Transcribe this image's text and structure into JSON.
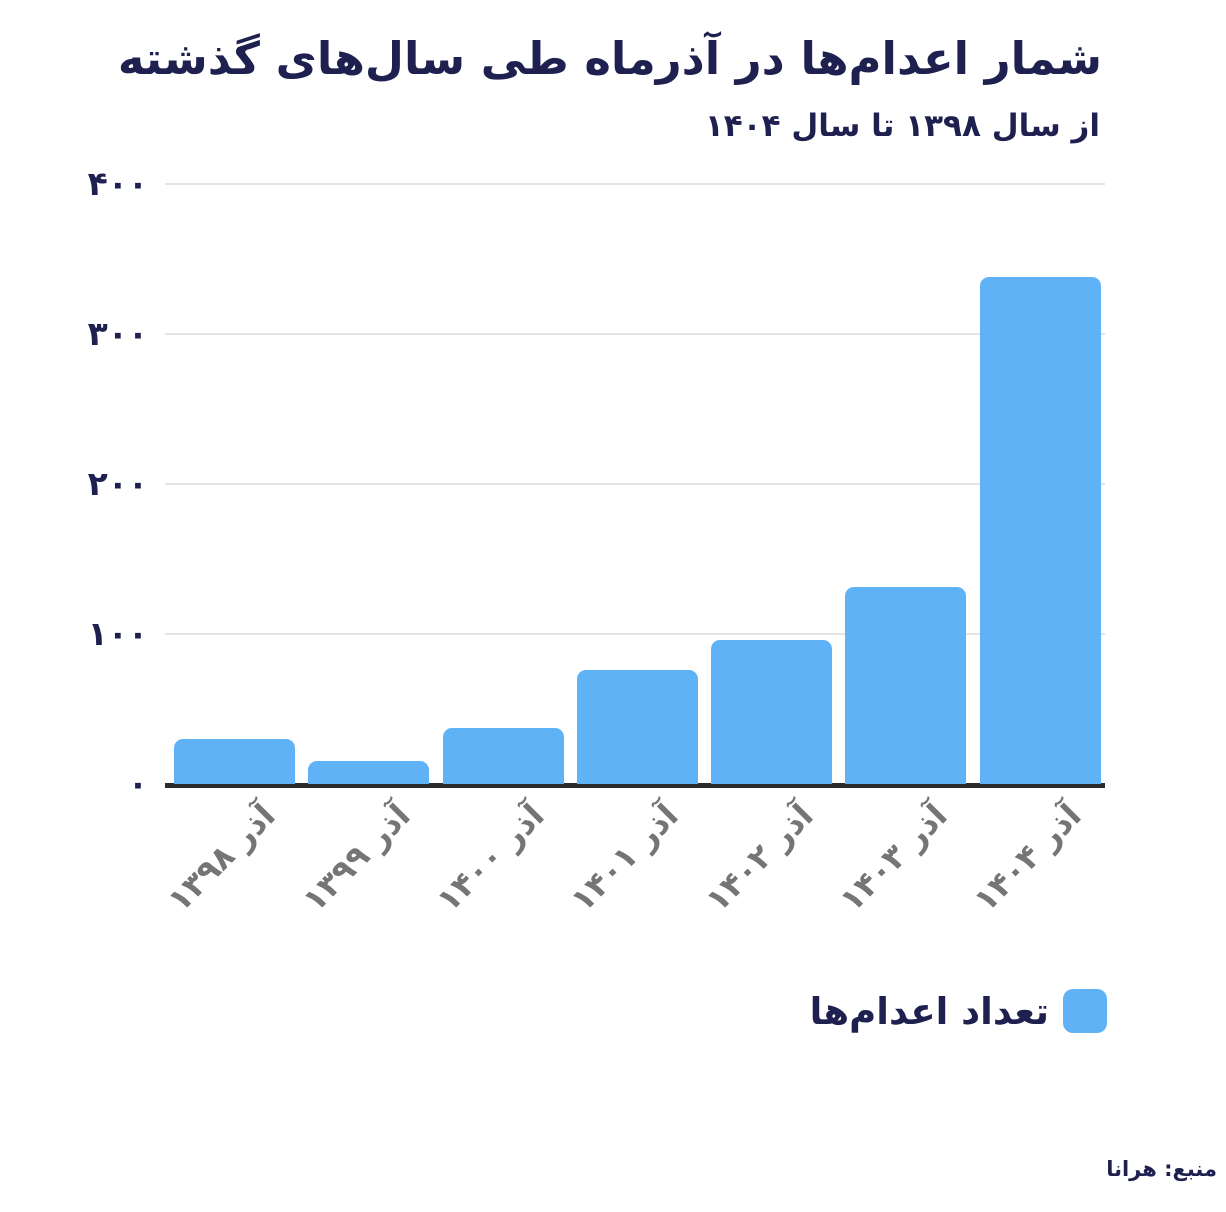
{
  "colors": {
    "background": "#ffffff",
    "navy": "#1e214f",
    "bar_blue": "#5fb2f6",
    "gray_label": "#757575",
    "gridline": "#e4e4e4",
    "axis_line": "#2b2b2b"
  },
  "chart_data": {
    "type": "bar",
    "title": "شمار اعدام‌ها در آذرماه طی سال‌های گذشته",
    "subtitle": "از سال ۱۳۹۸ تا سال ۱۴۰۴",
    "direction": "rtl",
    "categories": [
      "آذر ۱۳۹۸",
      "آذر ۱۳۹۹",
      "آذر ۱۴۰۰",
      "آذر ۱۴۰۱",
      "آذر ۱۴۰۲",
      "آذر ۱۴۰۳",
      "آذر ۱۴۰۴"
    ],
    "category_years": [
      1398,
      1399,
      1400,
      1401,
      1402,
      1403,
      1404
    ],
    "values": [
      30,
      15,
      37,
      76,
      96,
      131,
      338
    ],
    "ylim": [
      0,
      400
    ],
    "yticks": [
      {
        "value": 400,
        "label": "۴۰۰"
      },
      {
        "value": 300,
        "label": "۳۰۰"
      },
      {
        "value": 200,
        "label": "۲۰۰"
      },
      {
        "value": 100,
        "label": "۱۰۰"
      },
      {
        "value": 0,
        "label": "۰"
      }
    ],
    "grid": true,
    "bar_color": "#5fb2f6",
    "legend": {
      "label": "تعداد اعدام‌ها",
      "position": "bottom-right"
    },
    "source": "منبع: هرانا"
  }
}
